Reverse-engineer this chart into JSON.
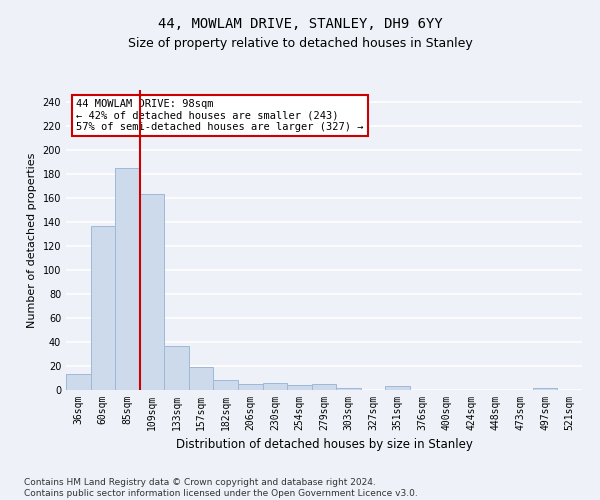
{
  "title1": "44, MOWLAM DRIVE, STANLEY, DH9 6YY",
  "title2": "Size of property relative to detached houses in Stanley",
  "xlabel": "Distribution of detached houses by size in Stanley",
  "ylabel": "Number of detached properties",
  "categories": [
    "36sqm",
    "60sqm",
    "85sqm",
    "109sqm",
    "133sqm",
    "157sqm",
    "182sqm",
    "206sqm",
    "230sqm",
    "254sqm",
    "279sqm",
    "303sqm",
    "327sqm",
    "351sqm",
    "376sqm",
    "400sqm",
    "424sqm",
    "448sqm",
    "473sqm",
    "497sqm",
    "521sqm"
  ],
  "values": [
    13,
    137,
    185,
    163,
    37,
    19,
    8,
    5,
    6,
    4,
    5,
    2,
    0,
    3,
    0,
    0,
    0,
    0,
    0,
    2,
    0
  ],
  "bar_color": "#cddaeb",
  "bar_edge_color": "#a0b8d8",
  "vline_x": 2.5,
  "vline_color": "#cc0000",
  "annotation_text": "44 MOWLAM DRIVE: 98sqm\n← 42% of detached houses are smaller (243)\n57% of semi-detached houses are larger (327) →",
  "annotation_box_color": "#ffffff",
  "annotation_box_edge": "#cc0000",
  "ylim": [
    0,
    250
  ],
  "yticks": [
    0,
    20,
    40,
    60,
    80,
    100,
    120,
    140,
    160,
    180,
    200,
    220,
    240
  ],
  "footer": "Contains HM Land Registry data © Crown copyright and database right 2024.\nContains public sector information licensed under the Open Government Licence v3.0.",
  "bg_color": "#eef2f8",
  "plot_bg_color": "#eef2f8",
  "grid_color": "#ffffff",
  "title1_fontsize": 10,
  "title2_fontsize": 9,
  "xlabel_fontsize": 8.5,
  "ylabel_fontsize": 8,
  "tick_fontsize": 7,
  "footer_fontsize": 6.5,
  "annot_fontsize": 7.5
}
